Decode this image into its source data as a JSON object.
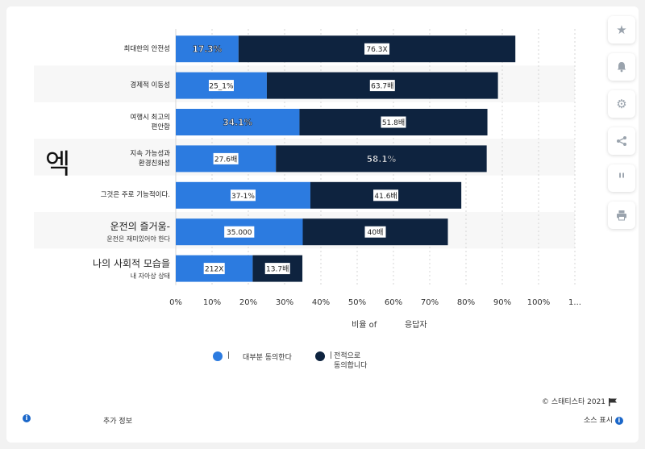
{
  "chart_data": {
    "type": "bar",
    "orientation": "horizontal",
    "stacked": true,
    "categories": [
      {
        "line1": "최대한의 안전성",
        "line2": ""
      },
      {
        "line1": "경제적 이동성",
        "line2": ""
      },
      {
        "line1": "여행시 최고의",
        "line2": "편안함"
      },
      {
        "line1": "지속 가능성과",
        "line2": "환경친화성"
      },
      {
        "line1": "그것은 주로 기능적이다.",
        "line2": ""
      },
      {
        "line1": "운전의 즐거움-",
        "line2": "운전은 재미있어야 한다"
      },
      {
        "line1": "나의 사회적 모습을",
        "line2": "내 자아상 상태"
      }
    ],
    "series": [
      {
        "name": "대부분 동의한다",
        "color": "#2c7be0",
        "values": [
          17.3,
          25.1,
          34.1,
          27.6,
          37.1,
          35.0,
          21.2
        ],
        "labels": [
          "17.3%",
          "25_1%",
          "34.1%",
          "27.6배",
          "37-1%",
          "35.000",
          "212X"
        ]
      },
      {
        "name": "전적으로 동의합니다",
        "color": "#0e233f",
        "values": [
          76.3,
          63.7,
          51.8,
          58.1,
          41.6,
          40.0,
          13.7
        ],
        "labels": [
          "76.3X",
          "63.7배",
          "51.8배",
          "58.1%",
          "41.6배",
          "40배",
          "13.7배"
        ]
      }
    ],
    "label_style": {
      "bold": [
        [
          true,
          false,
          true,
          false,
          false,
          false,
          false
        ],
        [
          false,
          false,
          false,
          true,
          false,
          false,
          false
        ]
      ]
    },
    "xticks": [
      "0%",
      "10%",
      "20%",
      "30%",
      "40%",
      "50%",
      "60%",
      "70%",
      "80%",
      "90%",
      "100%",
      "1..."
    ],
    "xlim": [
      0,
      110
    ],
    "xlabel_parts": [
      "비율 of",
      "응답자"
    ],
    "grid": true,
    "legend_position": "bottom"
  },
  "side_mark": "엑",
  "legend": [
    {
      "prefix": "|",
      "text": "대부분 동의한다"
    },
    {
      "prefix": "|",
      "text": "전적으로",
      "text2": "동의합니다"
    }
  ],
  "footer": {
    "copyright": "©  스태티스타 2021",
    "more_info": "추가 정보",
    "show_source": "소스 표시"
  },
  "toolbar_icons": [
    "star-icon",
    "bell-icon",
    "gear-icon",
    "share-icon",
    "quote-icon",
    "print-icon"
  ]
}
